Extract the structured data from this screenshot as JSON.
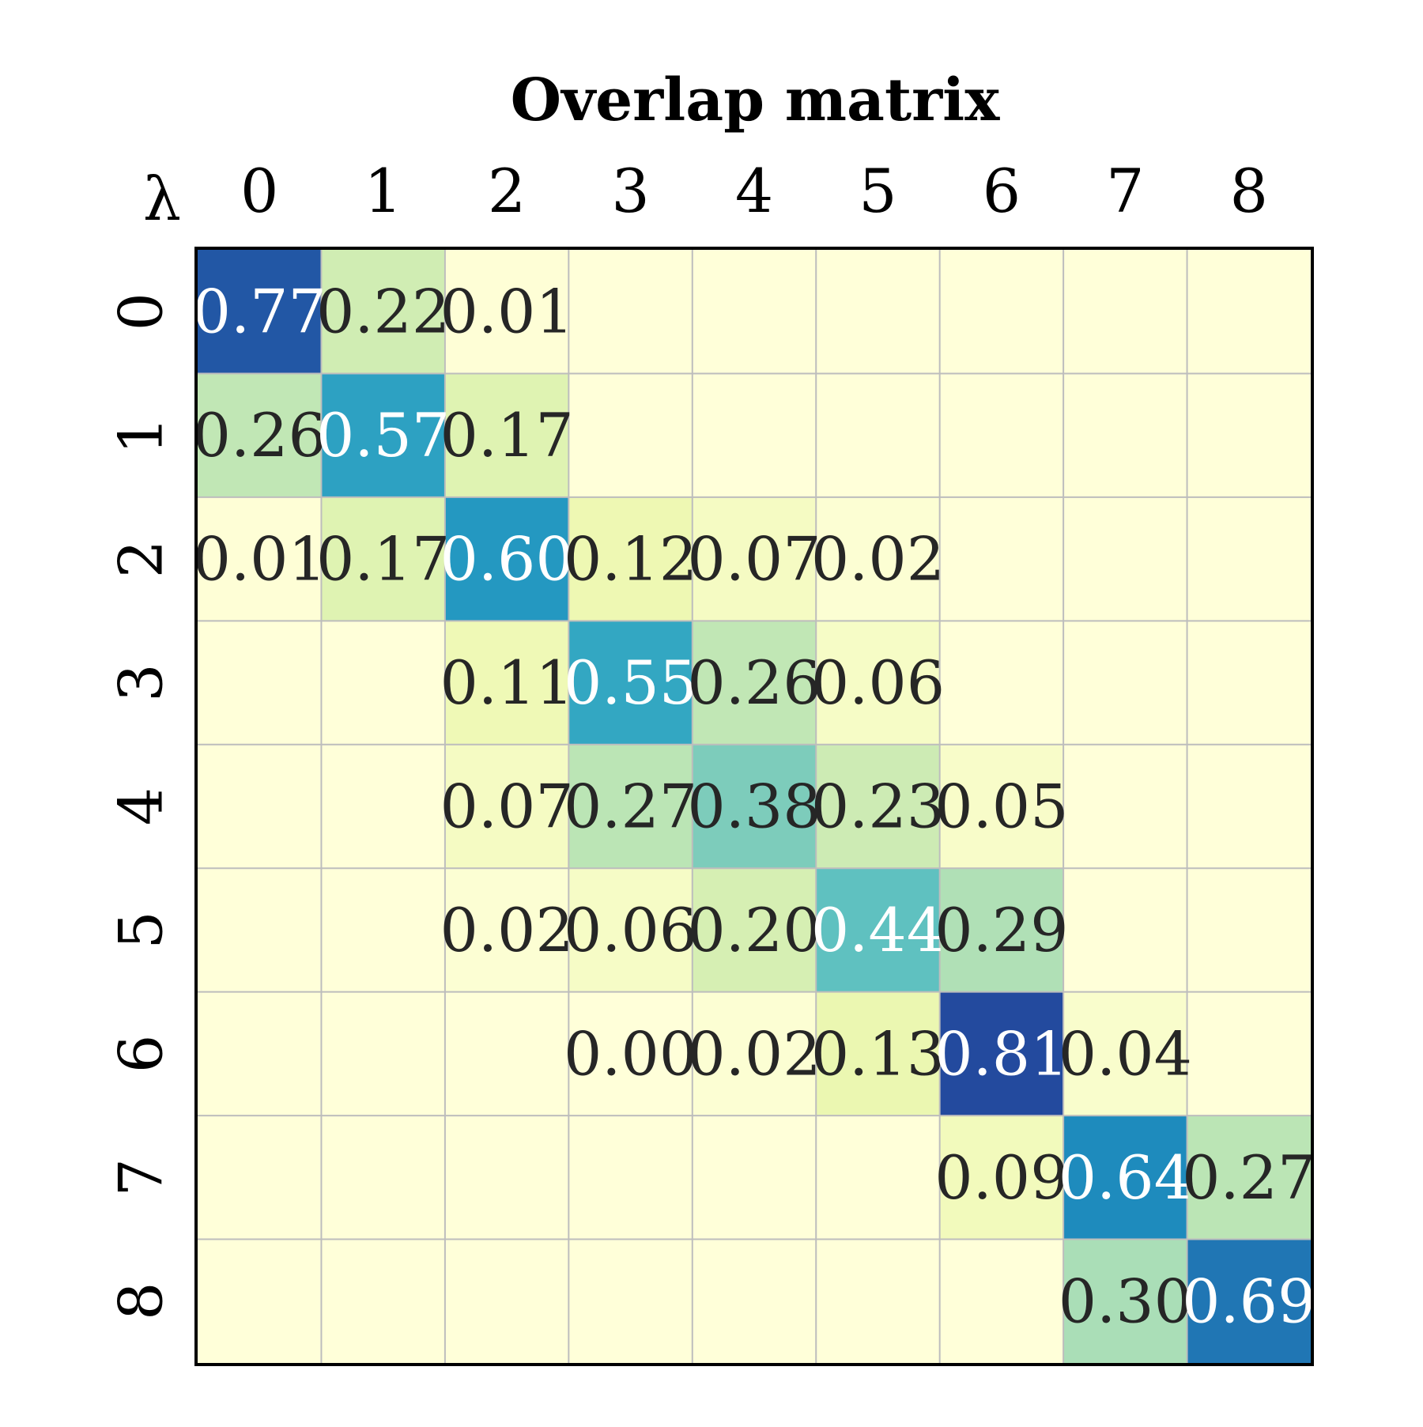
{
  "chart_data": {
    "type": "heatmap",
    "title": "Overlap matrix",
    "corner_label": "λ",
    "x_tick_labels": [
      "0",
      "1",
      "2",
      "3",
      "4",
      "5",
      "6",
      "7",
      "8"
    ],
    "y_tick_labels": [
      "0",
      "1",
      "2",
      "3",
      "4",
      "5",
      "6",
      "7",
      "8"
    ],
    "x_tick_position": "top",
    "y_tick_rotation": "vertical",
    "colormap": "YlGnBu",
    "value_range": [
      0,
      1
    ],
    "values": [
      [
        0.77,
        0.22,
        0.01,
        0,
        0,
        0,
        0,
        0,
        0
      ],
      [
        0.26,
        0.57,
        0.17,
        0,
        0,
        0,
        0,
        0,
        0
      ],
      [
        0.01,
        0.17,
        0.6,
        0.12,
        0.07,
        0.02,
        0,
        0,
        0
      ],
      [
        0,
        0,
        0.11,
        0.55,
        0.26,
        0.06,
        0,
        0,
        0
      ],
      [
        0,
        0,
        0.07,
        0.27,
        0.38,
        0.23,
        0.05,
        0,
        0
      ],
      [
        0,
        0,
        0.02,
        0.06,
        0.2,
        0.44,
        0.29,
        0,
        0
      ],
      [
        0,
        0,
        0,
        0.0,
        0.02,
        0.13,
        0.81,
        0.04,
        0
      ],
      [
        0,
        0,
        0,
        0,
        0,
        0,
        0.09,
        0.64,
        0.27
      ],
      [
        0,
        0,
        0,
        0,
        0,
        0,
        0,
        0.3,
        0.69
      ]
    ],
    "labels": [
      [
        "0.77",
        "0.22",
        "0.01",
        "",
        "",
        "",
        "",
        "",
        ""
      ],
      [
        "0.26",
        "0.57",
        "0.17",
        "",
        "",
        "",
        "",
        "",
        ""
      ],
      [
        "0.01",
        "0.17",
        "0.60",
        "0.12",
        "0.07",
        "0.02",
        "",
        "",
        ""
      ],
      [
        "",
        "",
        "0.11",
        "0.55",
        "0.26",
        "0.06",
        "",
        "",
        ""
      ],
      [
        "",
        "",
        "0.07",
        "0.27",
        "0.38",
        "0.23",
        "0.05",
        "",
        ""
      ],
      [
        "",
        "",
        "0.02",
        "0.06",
        "0.20",
        "0.44",
        "0.29",
        "",
        ""
      ],
      [
        "",
        "",
        "",
        "0.00",
        "0.02",
        "0.13",
        "0.81",
        "0.04",
        ""
      ],
      [
        "",
        "",
        "",
        "",
        "",
        "",
        "0.09",
        "0.64",
        "0.27"
      ],
      [
        "",
        "",
        "",
        "",
        "",
        "",
        "",
        "0.30",
        "0.69"
      ]
    ],
    "colors": {
      "grid_line": "#bdbdbd",
      "frame": "#000000",
      "dark_text": "#262626",
      "light_text": "#ffffff"
    }
  }
}
